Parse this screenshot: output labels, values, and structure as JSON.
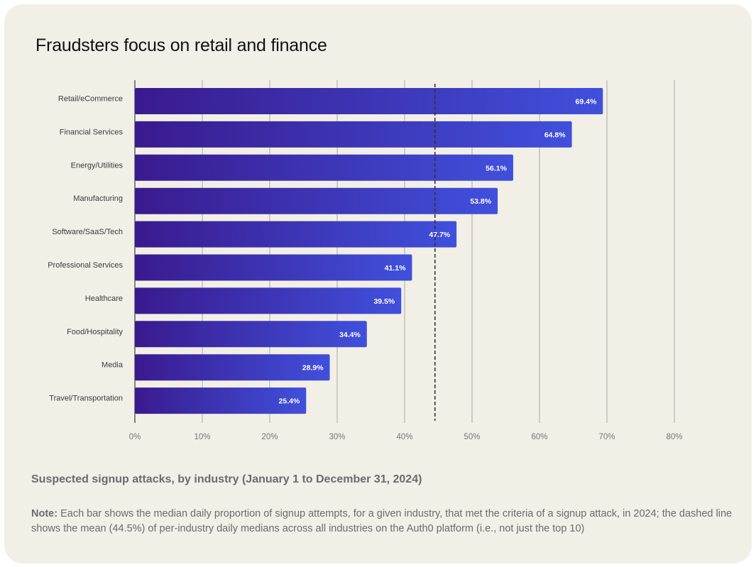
{
  "title": "Fraudsters focus on retail and finance",
  "subtitle": "Suspected signup attacks, by industry (January 1 to December 31, 2024)",
  "note": {
    "label": "Note:",
    "text": " Each bar shows the median daily proportion of signup attempts, for a given industry, that met the criteria of a signup attack, in 2024; the dashed line shows the mean (44.5%) of per-industry daily medians across all industries on the Auth0 platform (i.e., not just the top 10)"
  },
  "chart_data": {
    "type": "bar",
    "orientation": "horizontal",
    "categories": [
      "Retail/eCommerce",
      "Financial Services",
      "Energy/Utilities",
      "Manufacturing",
      "Software/SaaS/Tech",
      "Professional Services",
      "Healthcare",
      "Food/Hospitality",
      "Media",
      "Travel/Transportation"
    ],
    "values": [
      69.4,
      64.8,
      56.1,
      53.8,
      47.7,
      41.1,
      39.5,
      34.4,
      28.9,
      25.4
    ],
    "value_labels": [
      "69.4%",
      "64.8%",
      "56.1%",
      "53.8%",
      "47.7%",
      "41.1%",
      "39.5%",
      "34.4%",
      "28.9%",
      "25.4%"
    ],
    "xlim": [
      0,
      80
    ],
    "xticks": [
      0,
      10,
      20,
      30,
      40,
      50,
      60,
      70,
      80
    ],
    "xtick_labels": [
      "0%",
      "10%",
      "20%",
      "30%",
      "40%",
      "50%",
      "60%",
      "70%",
      "80%"
    ],
    "reference_line": 44.5,
    "grid": true,
    "colors": {
      "bar_start": "#3a1a8e",
      "bar_end": "#4050dc",
      "grid": "#a8a8a8",
      "reference": "#333333",
      "card_bg": "#f2efe6"
    }
  }
}
